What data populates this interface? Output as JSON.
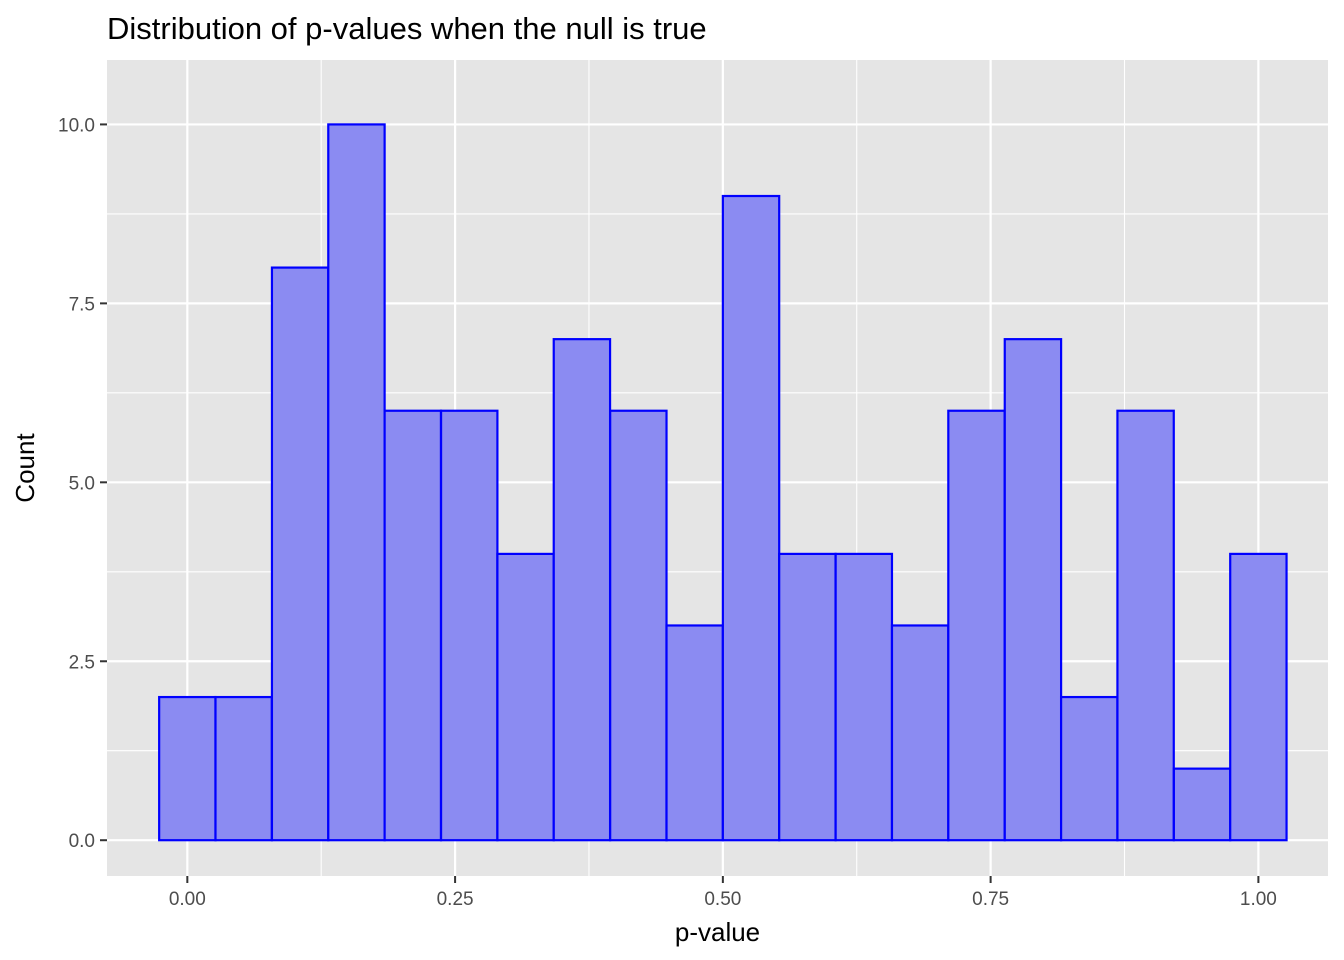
{
  "chart_data": {
    "type": "bar",
    "title": "Distribution of p-values when the null is true",
    "xlabel": "p-value",
    "ylabel": "Count",
    "bin_width": 0.0526,
    "bin_centers": [
      0.0,
      0.0526,
      0.1053,
      0.1579,
      0.2105,
      0.2632,
      0.3158,
      0.3684,
      0.4211,
      0.4737,
      0.5263,
      0.5789,
      0.6316,
      0.6842,
      0.7368,
      0.7895,
      0.8421,
      0.8947,
      0.9474,
      1.0
    ],
    "values": [
      2,
      2,
      8,
      10,
      6,
      6,
      4,
      7,
      6,
      3,
      9,
      4,
      4,
      3,
      6,
      7,
      2,
      6,
      1,
      4
    ],
    "xlim": [
      -0.075,
      1.065
    ],
    "ylim": [
      -0.5,
      10.9
    ],
    "x_ticks": [
      0.0,
      0.25,
      0.5,
      0.75,
      1.0
    ],
    "x_tick_labels": [
      "0.00",
      "0.25",
      "0.50",
      "0.75",
      "1.00"
    ],
    "y_ticks": [
      0.0,
      2.5,
      5.0,
      7.5,
      10.0
    ],
    "y_tick_labels": [
      "0.0",
      "2.5",
      "5.0",
      "7.5",
      "10.0"
    ],
    "grid": true,
    "colors": {
      "panel_background": "#E5E5E5",
      "bar_fill": "#8B8BF2",
      "bar_outline": "#0000FF",
      "grid": "#FFFFFF"
    }
  }
}
